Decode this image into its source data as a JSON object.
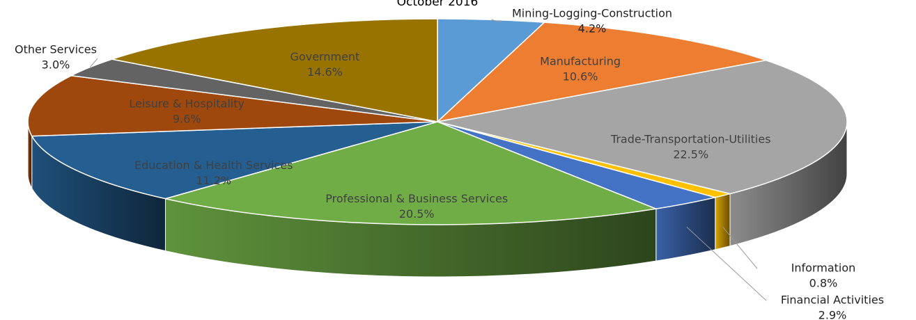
{
  "chart_data": {
    "type": "pie3d",
    "title": "October 2016",
    "categories": [
      "Mining-Logging-Construction",
      "Manufacturing",
      "Trade-Transportation-Utilities",
      "Information",
      "Financial Activities",
      "Professional & Business Services",
      "Education & Health Services",
      "Leisure & Hospitality",
      "Other Services",
      "Government"
    ],
    "values": [
      4.2,
      10.6,
      22.5,
      0.8,
      2.9,
      20.5,
      11.2,
      9.6,
      3.0,
      14.6
    ],
    "value_labels": [
      "4.2%",
      "10.6%",
      "22.5%",
      "0.8%",
      "2.9%",
      "20.5%",
      "11.2%",
      "9.6%",
      "3.0%",
      "14.6%"
    ],
    "colors": [
      "#5b9bd5",
      "#ed7d31",
      "#a5a5a5",
      "#ffc000",
      "#4472c4",
      "#70ad47",
      "#255e91",
      "#9e480e",
      "#636363",
      "#997300"
    ]
  }
}
